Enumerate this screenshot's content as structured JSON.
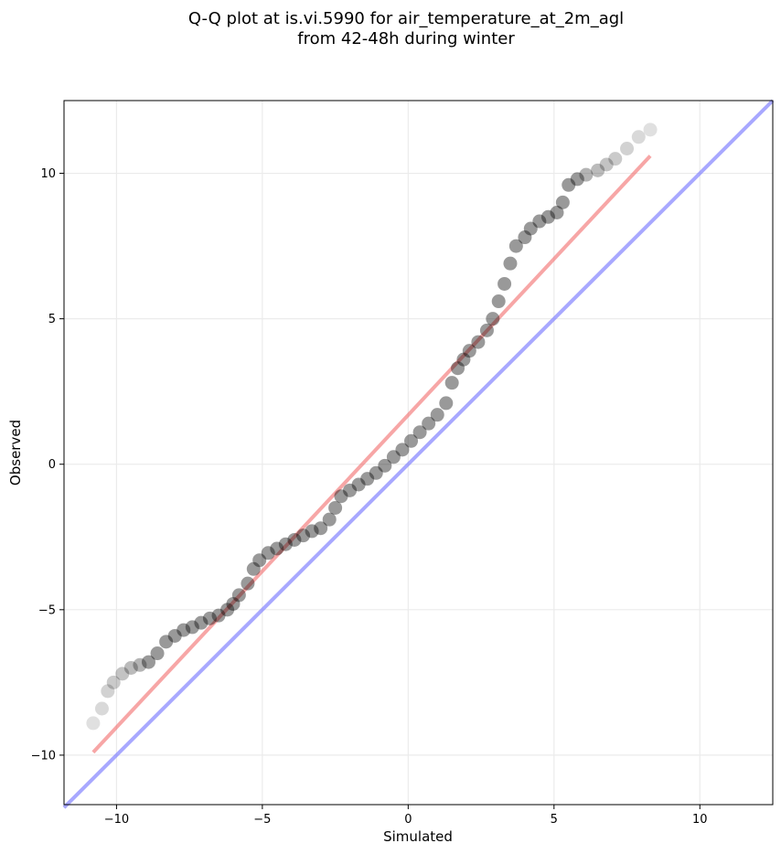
{
  "chart_data": {
    "type": "scatter",
    "title_line1": "Q-Q plot at is.vi.5990 for air_temperature_at_2m_agl",
    "title_line2": "from 42-48h during winter",
    "xlabel": "Simulated",
    "ylabel": "Observed",
    "xlim": [
      -11.8,
      12.5
    ],
    "ylim": [
      -11.7,
      12.5
    ],
    "xticks": [
      -10,
      -5,
      0,
      5,
      10
    ],
    "yticks": [
      -10,
      -5,
      0,
      5,
      10
    ],
    "xtick_labels": [
      "−10",
      "−5",
      "0",
      "5",
      "10"
    ],
    "ytick_labels": [
      "−10",
      "−5",
      "0",
      "5",
      "10"
    ],
    "grid": true,
    "colors": {
      "points": "#000000",
      "fit_line": "#f26b6b",
      "identity_line": "#7a7aff"
    },
    "identity_line": {
      "x": [
        -11.8,
        12.5
      ],
      "y": [
        -11.8,
        12.5
      ]
    },
    "fit_line": {
      "x": [
        -10.8,
        8.3
      ],
      "y": [
        -9.9,
        10.6
      ]
    },
    "quantiles": [
      {
        "x": -10.8,
        "y": -8.9
      },
      {
        "x": -10.5,
        "y": -8.4
      },
      {
        "x": -10.3,
        "y": -7.8
      },
      {
        "x": -10.1,
        "y": -7.5
      },
      {
        "x": -9.8,
        "y": -7.2
      },
      {
        "x": -9.5,
        "y": -7.0
      },
      {
        "x": -9.2,
        "y": -6.9
      },
      {
        "x": -8.9,
        "y": -6.8
      },
      {
        "x": -8.6,
        "y": -6.5
      },
      {
        "x": -8.3,
        "y": -6.1
      },
      {
        "x": -8.0,
        "y": -5.9
      },
      {
        "x": -7.7,
        "y": -5.7
      },
      {
        "x": -7.4,
        "y": -5.6
      },
      {
        "x": -7.1,
        "y": -5.45
      },
      {
        "x": -6.8,
        "y": -5.3
      },
      {
        "x": -6.5,
        "y": -5.2
      },
      {
        "x": -6.2,
        "y": -5.0
      },
      {
        "x": -6.0,
        "y": -4.8
      },
      {
        "x": -5.8,
        "y": -4.5
      },
      {
        "x": -5.5,
        "y": -4.1
      },
      {
        "x": -5.3,
        "y": -3.6
      },
      {
        "x": -5.1,
        "y": -3.3
      },
      {
        "x": -4.8,
        "y": -3.05
      },
      {
        "x": -4.5,
        "y": -2.9
      },
      {
        "x": -4.2,
        "y": -2.75
      },
      {
        "x": -3.9,
        "y": -2.6
      },
      {
        "x": -3.6,
        "y": -2.45
      },
      {
        "x": -3.3,
        "y": -2.3
      },
      {
        "x": -3.0,
        "y": -2.2
      },
      {
        "x": -2.7,
        "y": -1.9
      },
      {
        "x": -2.5,
        "y": -1.5
      },
      {
        "x": -2.3,
        "y": -1.1
      },
      {
        "x": -2.0,
        "y": -0.9
      },
      {
        "x": -1.7,
        "y": -0.7
      },
      {
        "x": -1.4,
        "y": -0.5
      },
      {
        "x": -1.1,
        "y": -0.3
      },
      {
        "x": -0.8,
        "y": -0.05
      },
      {
        "x": -0.5,
        "y": 0.25
      },
      {
        "x": -0.2,
        "y": 0.5
      },
      {
        "x": 0.1,
        "y": 0.8
      },
      {
        "x": 0.4,
        "y": 1.1
      },
      {
        "x": 0.7,
        "y": 1.4
      },
      {
        "x": 1.0,
        "y": 1.7
      },
      {
        "x": 1.3,
        "y": 2.1
      },
      {
        "x": 1.5,
        "y": 2.8
      },
      {
        "x": 1.7,
        "y": 3.3
      },
      {
        "x": 1.9,
        "y": 3.6
      },
      {
        "x": 2.1,
        "y": 3.9
      },
      {
        "x": 2.4,
        "y": 4.2
      },
      {
        "x": 2.7,
        "y": 4.6
      },
      {
        "x": 2.9,
        "y": 5.0
      },
      {
        "x": 3.1,
        "y": 5.6
      },
      {
        "x": 3.3,
        "y": 6.2
      },
      {
        "x": 3.5,
        "y": 6.9
      },
      {
        "x": 3.7,
        "y": 7.5
      },
      {
        "x": 4.0,
        "y": 7.8
      },
      {
        "x": 4.2,
        "y": 8.1
      },
      {
        "x": 4.5,
        "y": 8.35
      },
      {
        "x": 4.8,
        "y": 8.5
      },
      {
        "x": 5.1,
        "y": 8.65
      },
      {
        "x": 5.3,
        "y": 9.0
      },
      {
        "x": 5.5,
        "y": 9.6
      },
      {
        "x": 5.8,
        "y": 9.8
      },
      {
        "x": 6.1,
        "y": 9.95
      },
      {
        "x": 6.5,
        "y": 10.1
      },
      {
        "x": 6.8,
        "y": 10.3
      },
      {
        "x": 7.1,
        "y": 10.5
      },
      {
        "x": 7.5,
        "y": 10.85
      },
      {
        "x": 7.9,
        "y": 11.25
      },
      {
        "x": 8.3,
        "y": 11.5
      }
    ]
  }
}
